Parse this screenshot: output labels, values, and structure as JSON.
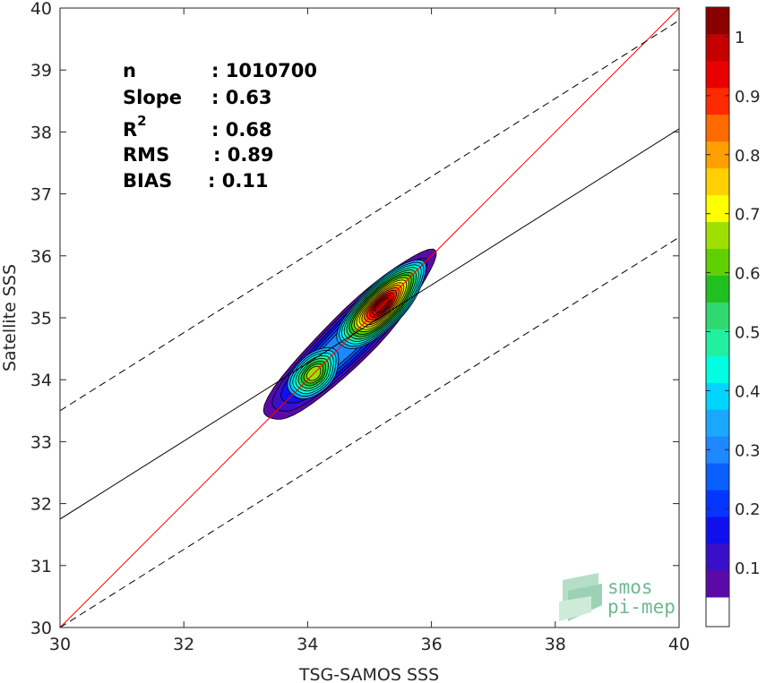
{
  "chart_data": {
    "type": "heatmap",
    "title": "",
    "xlabel": "TSG-SAMOS SSS",
    "ylabel": "Satellite SSS",
    "xlim": [
      30,
      40
    ],
    "ylim": [
      30,
      40
    ],
    "xticks": [
      30,
      32,
      34,
      36,
      38,
      40
    ],
    "yticks": [
      30,
      31,
      32,
      33,
      34,
      35,
      36,
      37,
      38,
      39,
      40
    ],
    "grid": false,
    "stats": [
      {
        "label": "n",
        "value": ": 1010700"
      },
      {
        "label": "Slope",
        "value": ": 0.63"
      },
      {
        "label": "R",
        "sup": "2",
        "value": ": 0.68"
      },
      {
        "label": "RMS",
        "value": ": 0.89"
      },
      {
        "label": "BIAS",
        "value": ": 0.11"
      }
    ],
    "lines": [
      {
        "kind": "identity",
        "color": "#ff0000",
        "style": "solid",
        "slope": 1,
        "intercept": 0
      },
      {
        "kind": "regression",
        "color": "#000000",
        "style": "solid",
        "slope": 0.63,
        "x0": 30,
        "y0": 31.75
      },
      {
        "kind": "upper-bound",
        "color": "#000000",
        "style": "dashed",
        "slope": 0.63,
        "x0": 30,
        "y0": 33.5
      },
      {
        "kind": "lower-bound",
        "color": "#000000",
        "style": "dashed",
        "slope": 0.63,
        "x0": 30,
        "y0": 30
      }
    ],
    "density": {
      "levels": [
        0.05,
        0.1,
        0.15,
        0.2,
        0.25,
        0.3,
        0.35,
        0.4,
        0.45,
        0.5,
        0.55,
        0.6,
        0.65,
        0.7,
        0.75,
        0.8,
        0.85,
        0.9,
        0.95,
        1.0
      ],
      "colors": [
        "#5b0aa8",
        "#3a0fc9",
        "#1010ee",
        "#0535ff",
        "#0a5fff",
        "#1e88ff",
        "#1aa8ff",
        "#00d5ff",
        "#00ffe0",
        "#20f0a0",
        "#30d870",
        "#20c020",
        "#60d000",
        "#a0e000",
        "#ffff00",
        "#ffd000",
        "#ffa000",
        "#ff6a00",
        "#ff2a00",
        "#e80000",
        "#c40000",
        "#8a0000"
      ],
      "peaks": [
        {
          "x": 35.2,
          "y": 35.2,
          "value": 1.0
        },
        {
          "x": 34.1,
          "y": 34.1,
          "value": 0.68
        }
      ]
    },
    "colorbar": {
      "ticks": [
        0.1,
        0.2,
        0.3,
        0.4,
        0.5,
        0.6,
        0.7,
        0.8,
        0.9,
        1
      ],
      "labels": [
        "0.1",
        "0.2",
        "0.3",
        "0.4",
        "0.5",
        "0.6",
        "0.7",
        "0.8",
        "0.9",
        "1"
      ]
    }
  },
  "logo": {
    "line1": "smos",
    "line2": "pi-mep"
  }
}
